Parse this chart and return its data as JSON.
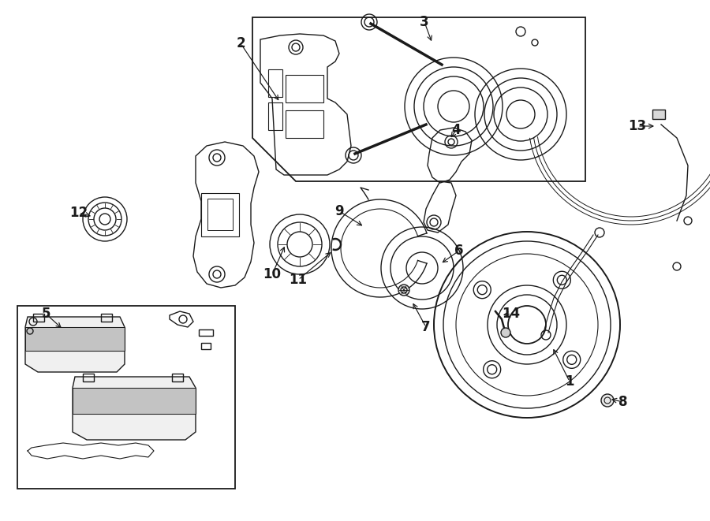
{
  "bg": "#ffffff",
  "lc": "#1a1a1a",
  "lw": 1.0,
  "fig_w": 9.0,
  "fig_h": 6.61,
  "dpi": 100
}
